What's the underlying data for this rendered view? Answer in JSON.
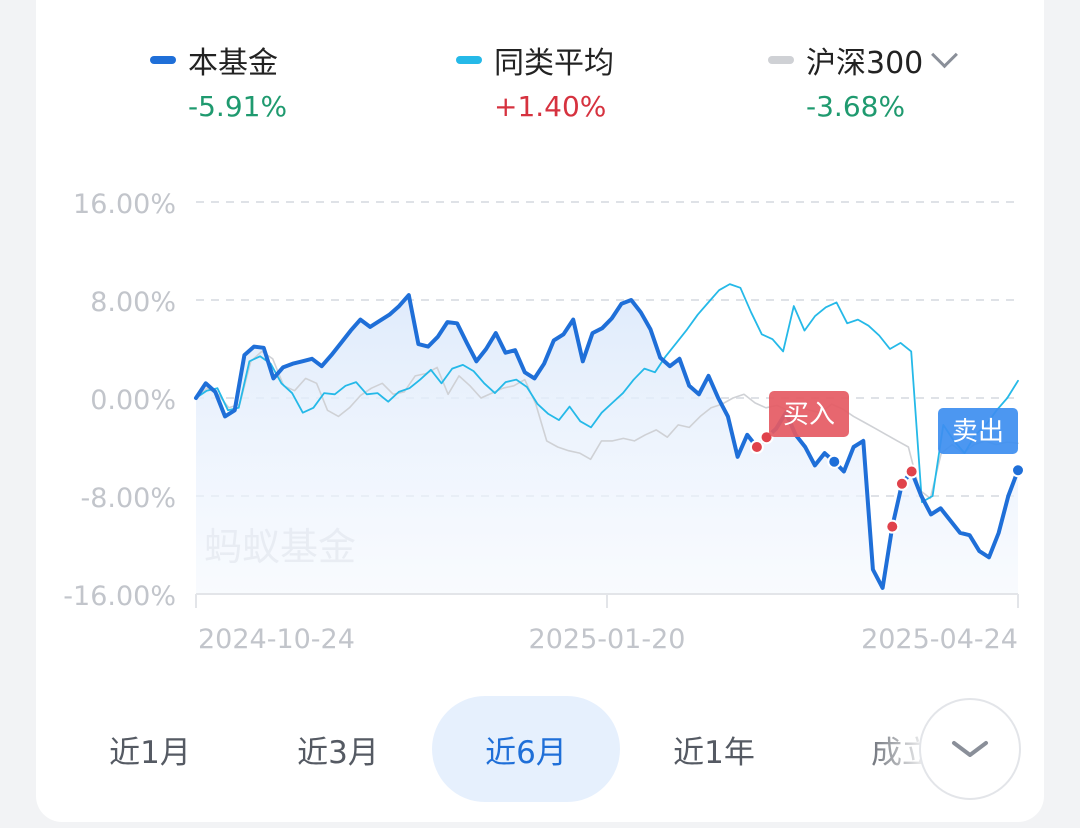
{
  "legend": [
    {
      "name": "本基金",
      "value": "-5.91%",
      "swatch": "#1f6fd8",
      "value_color": "#1f9a6f"
    },
    {
      "name": "同类平均",
      "value": "+1.40%",
      "swatch": "#25b9e8",
      "value_color": "#d6323f"
    },
    {
      "name": "沪深300",
      "value": "-3.68%",
      "swatch": "#cfd1d5",
      "value_color": "#1f9a6f"
    }
  ],
  "watermark": "蚂蚁基金",
  "tabs": [
    "近1月",
    "近3月",
    "近6月",
    "近1年",
    "成立"
  ],
  "active_tab": 2,
  "chart_data": {
    "type": "line",
    "ylim": [
      -16,
      16
    ],
    "y_ticks": [
      "16.00%",
      "8.00%",
      "0.00%",
      "-8.00%",
      "-16.00%"
    ],
    "y_tick_values": [
      16,
      8,
      0,
      -8,
      -16
    ],
    "x_ticks": [
      "2024-10-24",
      "2025-01-20",
      "2025-04-24"
    ],
    "x_tick_index": [
      0,
      55,
      110
    ],
    "grid": true,
    "series": [
      {
        "name": "本基金",
        "color": "#1f6fd8",
        "values": [
          0.0,
          1.2,
          0.5,
          -1.5,
          -1.0,
          3.5,
          4.2,
          4.1,
          1.6,
          2.5,
          2.8,
          3.0,
          3.2,
          2.6,
          3.5,
          4.5,
          5.5,
          6.4,
          5.8,
          6.3,
          6.8,
          7.5,
          8.4,
          4.4,
          4.2,
          5.0,
          6.2,
          6.1,
          4.5,
          3.0,
          4.0,
          5.3,
          3.7,
          3.9,
          2.1,
          1.6,
          2.8,
          4.7,
          5.2,
          6.4,
          3.0,
          5.3,
          5.7,
          6.5,
          7.7,
          8.0,
          7.0,
          5.6,
          3.3,
          2.6,
          3.2,
          1.0,
          0.3,
          1.8,
          0.0,
          -1.5,
          -4.8,
          -3.0,
          -4.0,
          -3.2,
          -2.5,
          -1.2,
          -3.0,
          -4.0,
          -5.5,
          -4.5,
          -5.2,
          -6.0,
          -4.0,
          -3.5,
          -14.0,
          -15.5,
          -10.5,
          -7.0,
          -6.0,
          -8.0,
          -9.5,
          -9.0,
          -10.0,
          -11.0,
          -11.2,
          -12.5,
          -13.0,
          -11.0,
          -8.0,
          -5.9
        ]
      },
      {
        "name": "同类平均",
        "color": "#25b9e8",
        "values": [
          0.0,
          0.6,
          0.8,
          -1.0,
          -0.8,
          3.0,
          3.4,
          2.8,
          1.2,
          0.4,
          -1.2,
          -0.8,
          0.4,
          0.3,
          1.0,
          1.3,
          0.3,
          0.4,
          -0.3,
          0.5,
          0.8,
          1.5,
          2.3,
          1.2,
          2.4,
          2.7,
          2.2,
          1.2,
          0.4,
          1.3,
          1.5,
          0.9,
          -0.5,
          -1.3,
          -1.8,
          -0.7,
          -1.9,
          -2.4,
          -1.2,
          -0.4,
          0.4,
          1.5,
          2.4,
          2.1,
          3.4,
          4.5,
          5.6,
          6.8,
          7.8,
          8.8,
          9.3,
          9.0,
          7.0,
          5.2,
          4.8,
          3.8,
          7.5,
          5.5,
          6.7,
          7.4,
          7.8,
          6.1,
          6.4,
          5.9,
          5.1,
          4.0,
          4.5,
          3.8,
          -8.5,
          -8.0,
          -2.2,
          -3.5,
          -4.5,
          -3.0,
          -2.2,
          -1.0,
          0.0,
          1.4
        ]
      },
      {
        "name": "沪深300",
        "color": "#cfd1d5",
        "values": [
          0.0,
          0.8,
          0.3,
          -0.8,
          -0.5,
          3.0,
          3.8,
          3.2,
          1.0,
          0.6,
          1.6,
          1.2,
          -1.0,
          -1.5,
          -0.8,
          0.2,
          0.8,
          1.2,
          0.3,
          0.5,
          1.8,
          2.0,
          2.5,
          0.3,
          1.8,
          1.0,
          0.0,
          0.4,
          0.8,
          1.0,
          1.5,
          -0.5,
          -3.5,
          -4.0,
          -4.3,
          -4.5,
          -5.0,
          -3.5,
          -3.5,
          -3.3,
          -3.5,
          -3.0,
          -2.6,
          -3.2,
          -2.2,
          -2.4,
          -1.5,
          -0.8,
          -0.5,
          0.0,
          0.3,
          -0.4,
          -0.8,
          -0.6,
          -1.0,
          -0.7,
          -1.0,
          -1.2,
          -0.5,
          -0.9,
          -1.5,
          -2.0,
          -2.5,
          -3.0,
          -3.5,
          -4.0,
          -7.5,
          -8.2,
          -4.5,
          -3.8,
          -4.5,
          -3.8,
          -3.5,
          -3.8,
          -3.6,
          -3.7
        ]
      }
    ],
    "annotations": [
      {
        "text": "买入",
        "type": "buy",
        "bg": "#e55a63"
      },
      {
        "text": "卖出",
        "type": "sell",
        "bg": "#3d8ef0"
      }
    ]
  }
}
